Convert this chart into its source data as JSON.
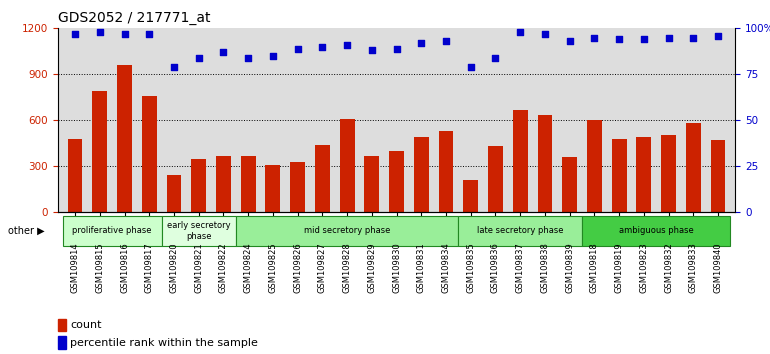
{
  "title": "GDS2052 / 217771_at",
  "categories": [
    "GSM109814",
    "GSM109815",
    "GSM109816",
    "GSM109817",
    "GSM109820",
    "GSM109821",
    "GSM109822",
    "GSM109824",
    "GSM109825",
    "GSM109826",
    "GSM109827",
    "GSM109828",
    "GSM109829",
    "GSM109830",
    "GSM109831",
    "GSM109834",
    "GSM109835",
    "GSM109836",
    "GSM109837",
    "GSM109838",
    "GSM109839",
    "GSM109818",
    "GSM109819",
    "GSM109823",
    "GSM109832",
    "GSM109833",
    "GSM109840"
  ],
  "bar_values": [
    480,
    790,
    960,
    760,
    245,
    350,
    370,
    370,
    310,
    330,
    440,
    610,
    370,
    400,
    490,
    530,
    210,
    430,
    665,
    635,
    360,
    600,
    480,
    490,
    505,
    580,
    470
  ],
  "percentile_values": [
    97,
    98,
    97,
    97,
    79,
    84,
    87,
    84,
    85,
    89,
    90,
    91,
    88,
    89,
    92,
    93,
    79,
    84,
    98,
    97,
    93,
    95,
    94,
    94,
    95,
    95,
    96
  ],
  "bar_color": "#cc2200",
  "dot_color": "#0000cc",
  "ylim_left": [
    0,
    1200
  ],
  "ylim_right": [
    0,
    100
  ],
  "yticks_left": [
    0,
    300,
    600,
    900,
    1200
  ],
  "yticks_right": [
    0,
    25,
    50,
    75,
    100
  ],
  "phase_groups": [
    {
      "label": "proliferative phase",
      "start": 0,
      "end": 4,
      "color": "#ccffcc"
    },
    {
      "label": "early secretory\nphase",
      "start": 4,
      "end": 7,
      "color": "#dfffdf"
    },
    {
      "label": "mid secretory phase",
      "start": 7,
      "end": 16,
      "color": "#99ee99"
    },
    {
      "label": "late secretory phase",
      "start": 16,
      "end": 21,
      "color": "#99ee99"
    },
    {
      "label": "ambiguous phase",
      "start": 21,
      "end": 27,
      "color": "#44cc44"
    }
  ],
  "grid_values": [
    300,
    600,
    900
  ],
  "background_color": "#dddddd",
  "fig_background": "#ffffff",
  "legend_count_label": "count",
  "legend_percentile_label": "percentile rank within the sample"
}
